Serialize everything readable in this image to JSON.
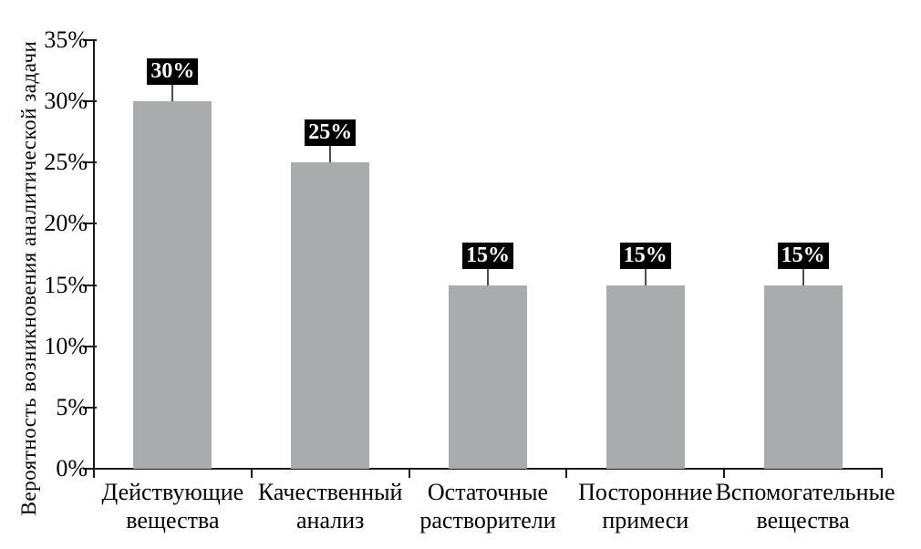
{
  "chart_data": {
    "type": "bar",
    "title": "",
    "xlabel": "",
    "ylabel": "Вероятность возникновения аналитической задачи",
    "categories": [
      "Действующие вещества",
      "Качественный анализ",
      "Остаточные растворители",
      "Посторонние примеси",
      "Вспомогательные вещества"
    ],
    "values": [
      30,
      25,
      15,
      15,
      15
    ],
    "data_labels": [
      "30%",
      "25%",
      "15%",
      "15%",
      "15%"
    ],
    "y_ticks": [
      "0%",
      "5%",
      "10%",
      "15%",
      "20%",
      "25%",
      "30%",
      "35%"
    ],
    "ylim": [
      0,
      35
    ],
    "grid": false,
    "legend": false,
    "colors": {
      "bar_fill": "#aaabad",
      "axis": "#1a1a1a",
      "value_label_bg": "#000000",
      "value_label_text": "#ffffff",
      "connector": "#4d4d4d"
    }
  }
}
